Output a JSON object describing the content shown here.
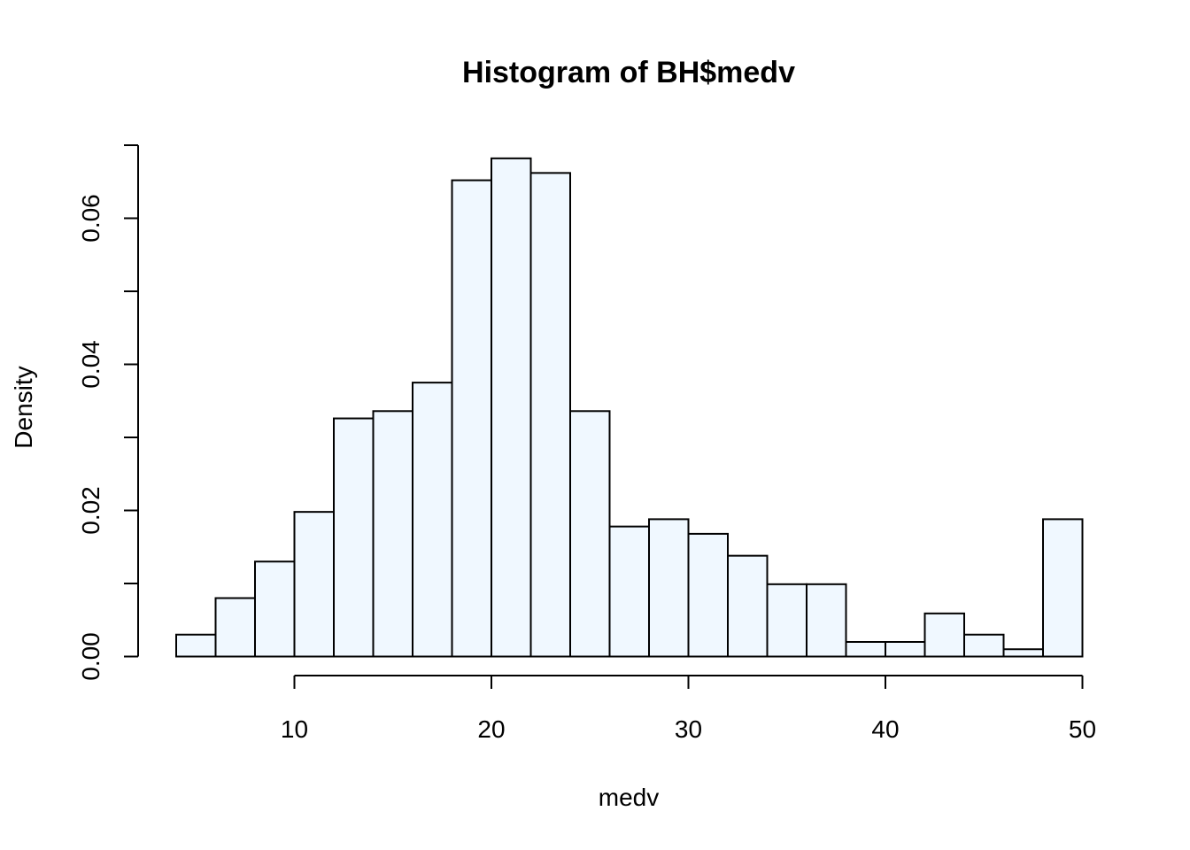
{
  "chart_data": {
    "type": "bar",
    "title": "Histogram of BH$medv",
    "xlabel": "medv",
    "ylabel": "Density",
    "bin_edges": [
      4,
      6,
      8,
      10,
      12,
      14,
      16,
      18,
      20,
      22,
      24,
      26,
      28,
      30,
      32,
      34,
      36,
      38,
      40,
      42,
      44,
      46,
      48,
      50
    ],
    "values": [
      0.003,
      0.008,
      0.013,
      0.0198,
      0.0326,
      0.0336,
      0.0375,
      0.0652,
      0.0682,
      0.0662,
      0.0336,
      0.0178,
      0.0188,
      0.0168,
      0.0138,
      0.0099,
      0.0099,
      0.002,
      0.002,
      0.0059,
      0.003,
      0.001,
      0.0188
    ],
    "x_ticks": [
      10,
      20,
      30,
      40,
      50
    ],
    "x_tick_labels": [
      "10",
      "20",
      "30",
      "40",
      "50"
    ],
    "y_ticks": [
      0,
      0.01,
      0.02,
      0.03,
      0.04,
      0.05,
      0.06,
      0.07
    ],
    "y_tick_labels": [
      "0.00",
      "",
      "0.02",
      "",
      "0.04",
      "",
      "0.06",
      ""
    ],
    "xlim": [
      4,
      50
    ],
    "ylim": [
      0,
      0.07
    ],
    "grid": false,
    "colors": {
      "bar_fill": "#f0f8ff",
      "bar_stroke": "#000000",
      "axis": "#000000"
    }
  }
}
